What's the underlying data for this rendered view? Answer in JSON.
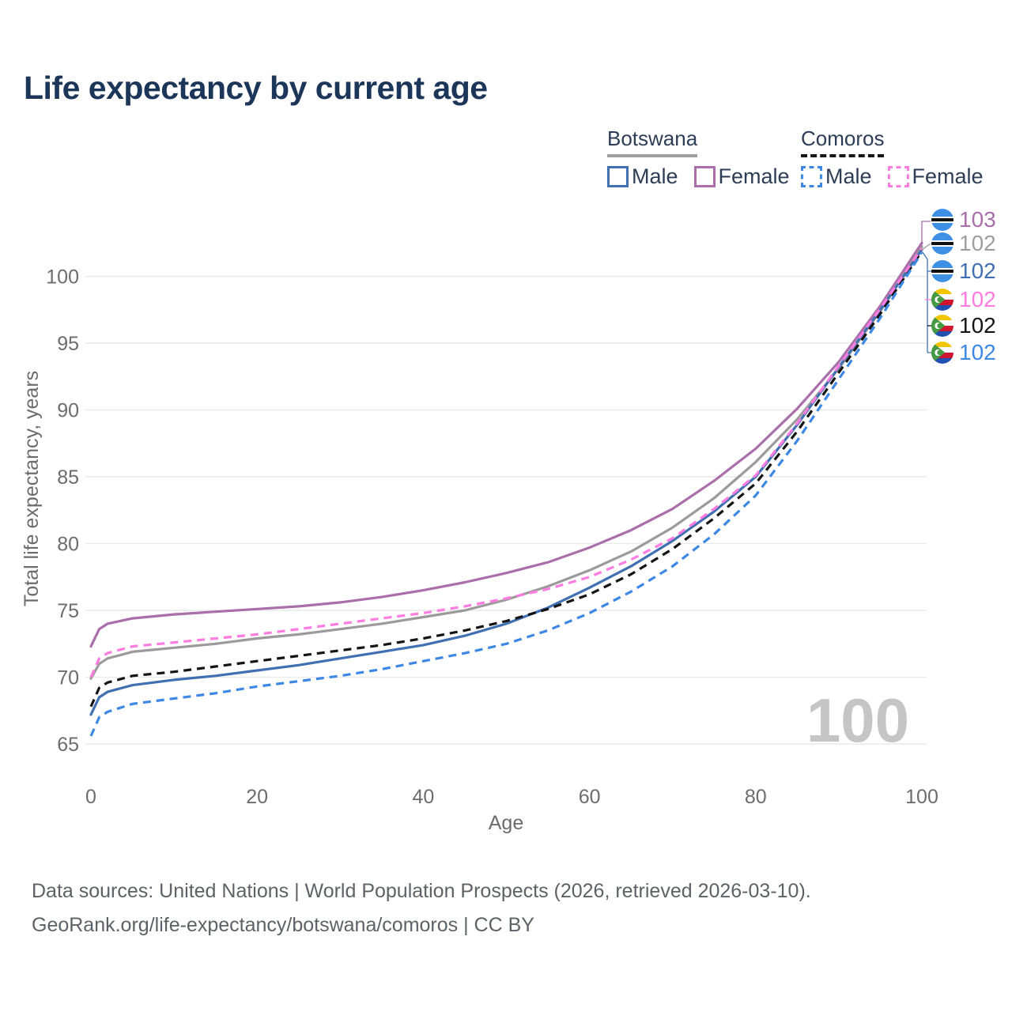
{
  "title": "Life expectancy by current age",
  "legend": {
    "groups": [
      {
        "label": "Botswana",
        "line_style": "solid",
        "line_color": "#9e9e9e",
        "items": [
          {
            "label": "Male",
            "color": "#4170b2",
            "dashed": false
          },
          {
            "label": "Female",
            "color": "#aa6fab",
            "dashed": false
          }
        ]
      },
      {
        "label": "Comoros",
        "line_style": "dashed",
        "line_color": "#161616",
        "items": [
          {
            "label": "Male",
            "color": "#3c88e4",
            "dashed": true
          },
          {
            "label": "Female",
            "color": "#ff7ce0",
            "dashed": true
          }
        ]
      }
    ]
  },
  "end_labels": [
    {
      "value": "103",
      "color": "#aa6fab",
      "flag": "botswana"
    },
    {
      "value": "102",
      "color": "#9e9e9e",
      "flag": "botswana"
    },
    {
      "value": "102",
      "color": "#4170b2",
      "flag": "botswana"
    },
    {
      "value": "102",
      "color": "#ff7ce0",
      "flag": "comoros"
    },
    {
      "value": "102",
      "color": "#141414",
      "flag": "comoros"
    },
    {
      "value": "102",
      "color": "#3c88e4",
      "flag": "comoros"
    }
  ],
  "watermark": "100",
  "chart_data": {
    "type": "line",
    "title": "Life expectancy by current age",
    "xlabel": "Age",
    "ylabel": "Total life expectancy, years",
    "xlim": [
      0,
      100
    ],
    "ylim": [
      63,
      104
    ],
    "xticks": [
      0,
      20,
      40,
      60,
      80,
      100
    ],
    "yticks": [
      65,
      70,
      75,
      80,
      85,
      90,
      95,
      100
    ],
    "grid": "horizontal",
    "legend_position": "top-right",
    "x": [
      0,
      1,
      2,
      5,
      10,
      15,
      20,
      25,
      30,
      35,
      40,
      45,
      50,
      55,
      60,
      65,
      70,
      75,
      80,
      85,
      90,
      95,
      100
    ],
    "series": [
      {
        "name": "Botswana Female",
        "color": "#aa6fab",
        "dash": "solid",
        "values": [
          72.3,
          73.6,
          74.0,
          74.4,
          74.7,
          74.9,
          75.1,
          75.3,
          75.6,
          76.0,
          76.5,
          77.1,
          77.8,
          78.6,
          79.7,
          81.0,
          82.6,
          84.7,
          87.1,
          90.1,
          93.6,
          97.8,
          102.5
        ]
      },
      {
        "name": "Botswana Both sexes",
        "color": "#9b9b9b",
        "dash": "solid",
        "values": [
          69.9,
          71.0,
          71.4,
          71.9,
          72.2,
          72.5,
          72.9,
          73.2,
          73.6,
          74.0,
          74.5,
          75.0,
          75.8,
          76.8,
          78.0,
          79.4,
          81.2,
          83.4,
          86.1,
          89.3,
          93.1,
          97.4,
          102.2
        ]
      },
      {
        "name": "Botswana Male",
        "color": "#4170b2",
        "dash": "solid",
        "values": [
          67.2,
          68.5,
          68.9,
          69.4,
          69.8,
          70.1,
          70.5,
          70.9,
          71.4,
          71.9,
          72.4,
          73.1,
          74.0,
          75.2,
          76.7,
          78.3,
          80.2,
          82.4,
          85.0,
          88.9,
          93.2,
          97.5,
          102.0
        ]
      },
      {
        "name": "Comoros Both sexes",
        "color": "#141414",
        "dash": "dashed",
        "values": [
          67.8,
          69.2,
          69.6,
          70.1,
          70.4,
          70.8,
          71.2,
          71.6,
          72.0,
          72.4,
          72.9,
          73.5,
          74.2,
          75.1,
          76.2,
          77.7,
          79.6,
          81.9,
          84.5,
          88.4,
          92.8,
          97.2,
          101.9
        ]
      },
      {
        "name": "Comoros Male",
        "color": "#3c88e4",
        "dash": "dashed",
        "values": [
          65.6,
          67.0,
          67.4,
          68.0,
          68.4,
          68.8,
          69.3,
          69.7,
          70.1,
          70.6,
          71.2,
          71.8,
          72.5,
          73.5,
          74.8,
          76.4,
          78.3,
          80.7,
          83.6,
          87.7,
          92.3,
          96.9,
          101.8
        ]
      },
      {
        "name": "Comoros Female",
        "color": "#ff7ce0",
        "dash": "dashed",
        "values": [
          70.0,
          71.4,
          71.8,
          72.3,
          72.6,
          72.9,
          73.2,
          73.6,
          74.0,
          74.4,
          74.8,
          75.3,
          75.9,
          76.6,
          77.5,
          78.8,
          80.4,
          82.6,
          85.1,
          89.0,
          93.3,
          97.6,
          102.1
        ]
      }
    ]
  },
  "footer": {
    "line1": "Data sources: United Nations | World Population Prospects (2026, retrieved 2026-03-10).",
    "line2": "GeoRank.org/life-expectancy/botswana/comoros | CC BY"
  }
}
